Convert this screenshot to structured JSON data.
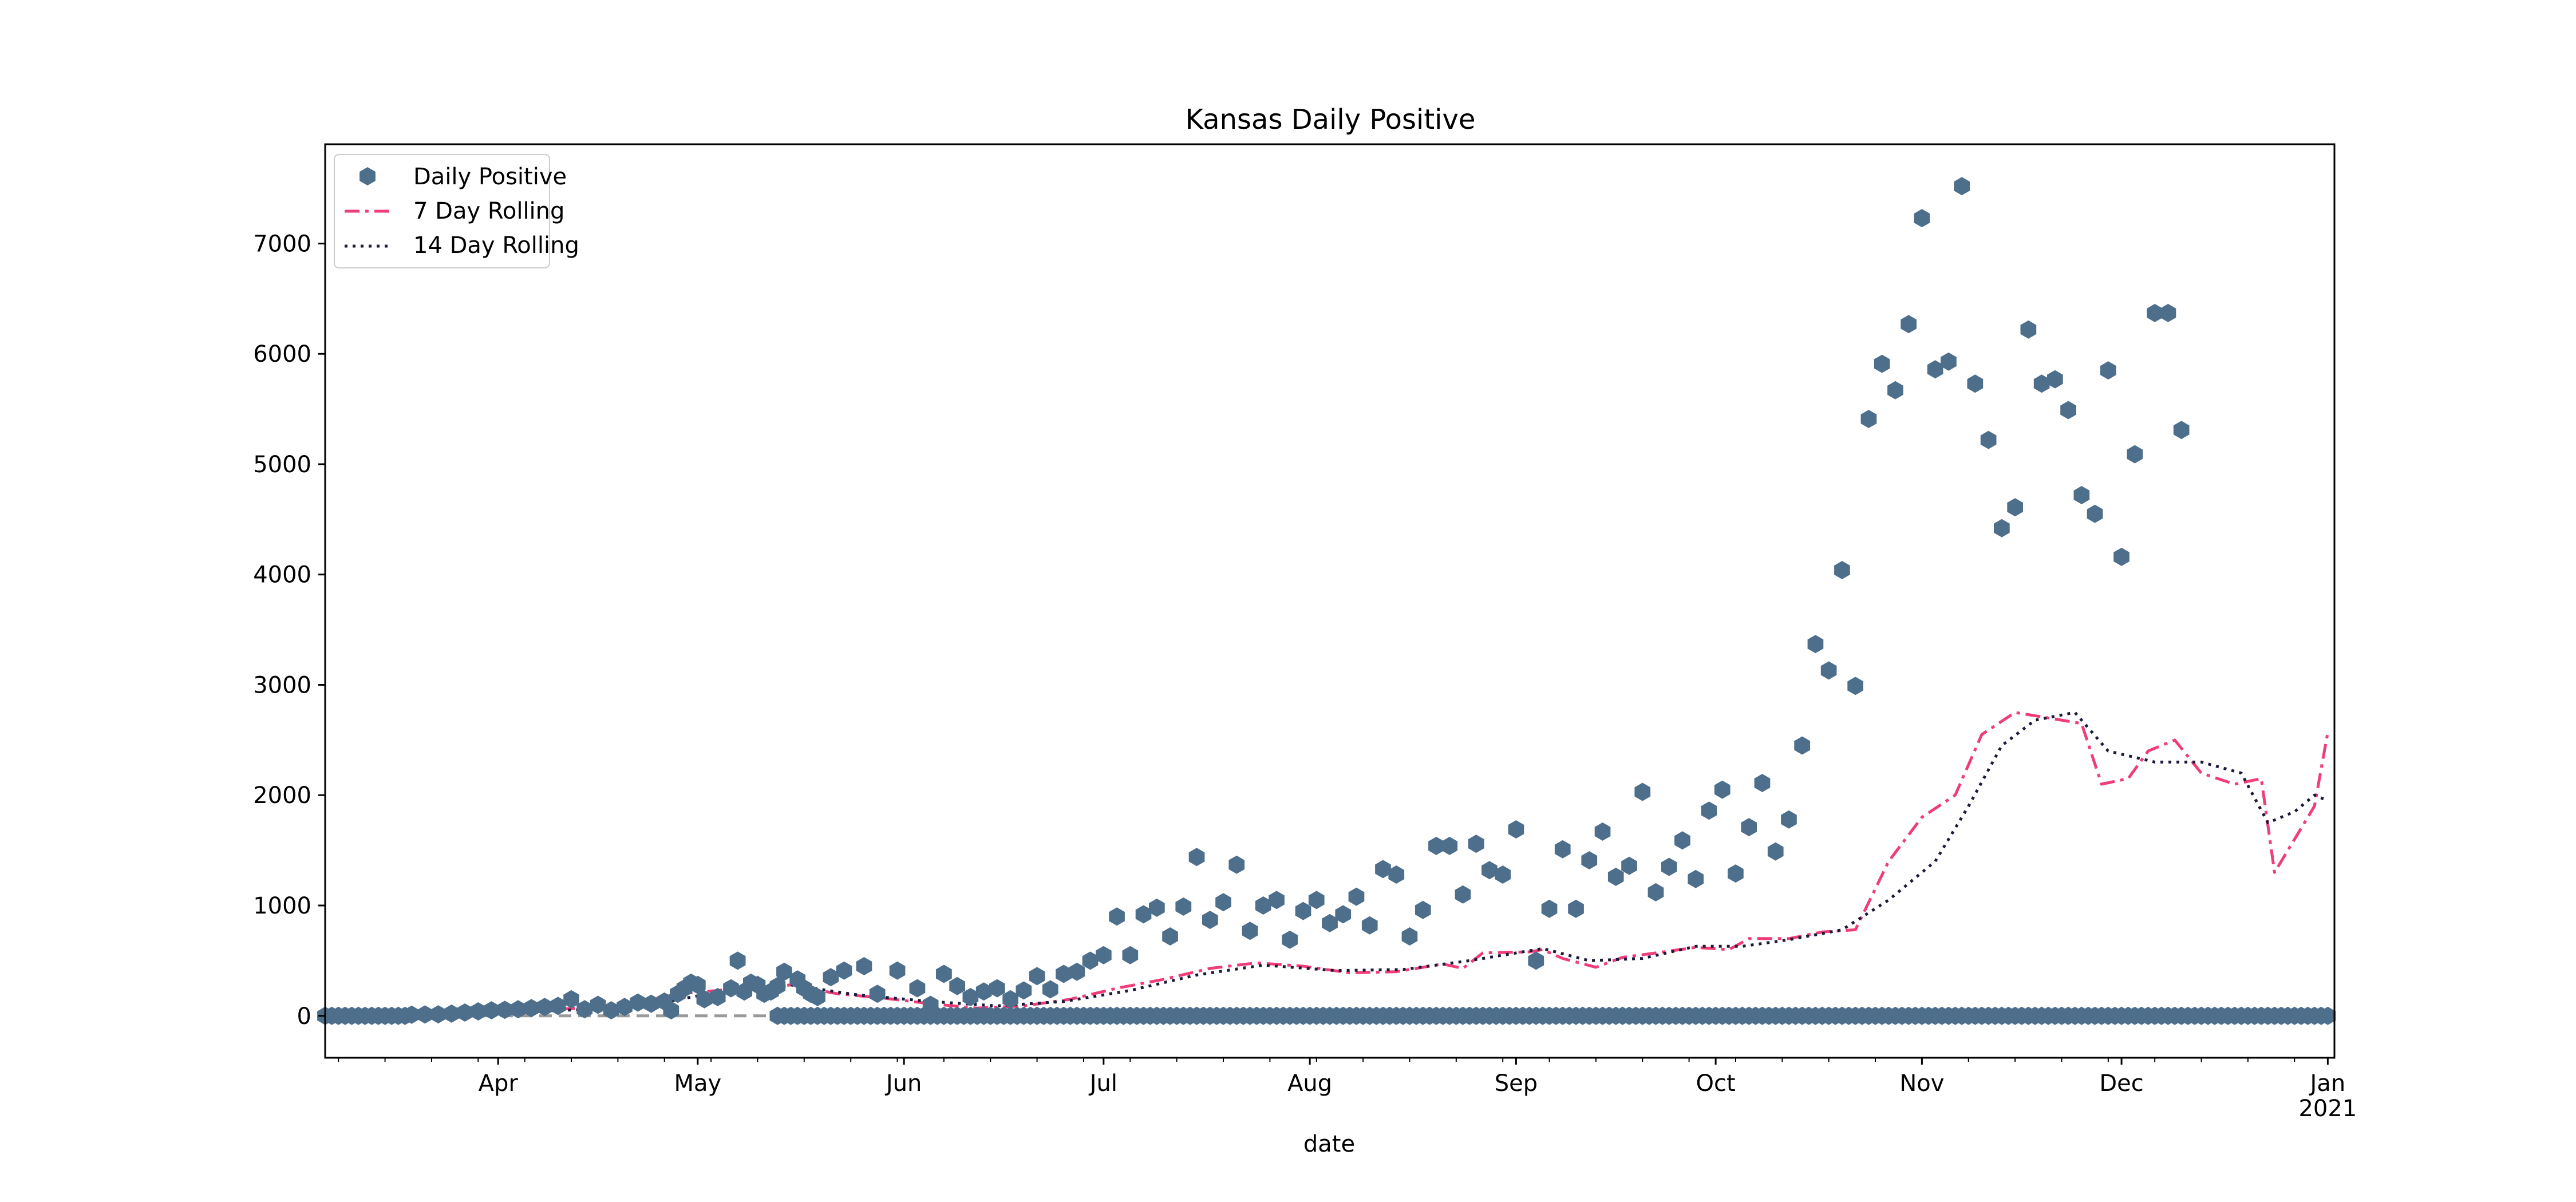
{
  "chart_data": {
    "type": "line",
    "title": "Kansas Daily Positive",
    "xlabel": "date",
    "ylabel": "",
    "ylim": [
      -380,
      7900
    ],
    "xlim": [
      "2020-03-06",
      "2021-01-02"
    ],
    "y_ticks": [
      0,
      1000,
      2000,
      3000,
      4000,
      5000,
      6000,
      7000
    ],
    "x_ticks": [
      {
        "date": "2020-04-01",
        "label": "Apr"
      },
      {
        "date": "2020-05-01",
        "label": "May"
      },
      {
        "date": "2020-06-01",
        "label": "Jun"
      },
      {
        "date": "2020-07-01",
        "label": "Jul"
      },
      {
        "date": "2020-08-01",
        "label": "Aug"
      },
      {
        "date": "2020-09-01",
        "label": "Sep"
      },
      {
        "date": "2020-10-01",
        "label": "Oct"
      },
      {
        "date": "2020-11-01",
        "label": "Nov"
      },
      {
        "date": "2020-12-01",
        "label": "Dec"
      },
      {
        "date": "2021-01-01",
        "label": "Jan",
        "sublabel": "2021"
      }
    ],
    "grid": false,
    "legend_position": "top-left",
    "colors": {
      "daily": "#4e6f8c",
      "rolling7": "#f03c78",
      "rolling14": "#1a1a3a",
      "zero_line": "#999999"
    },
    "series": [
      {
        "name": "Daily Positive",
        "style": "hexagon-markers",
        "points": [
          [
            "2020-03-19",
            10
          ],
          [
            "2020-03-21",
            12
          ],
          [
            "2020-03-23",
            14
          ],
          [
            "2020-03-25",
            20
          ],
          [
            "2020-03-27",
            30
          ],
          [
            "2020-03-29",
            40
          ],
          [
            "2020-03-31",
            50
          ],
          [
            "2020-04-02",
            55
          ],
          [
            "2020-04-04",
            60
          ],
          [
            "2020-04-06",
            70
          ],
          [
            "2020-04-08",
            80
          ],
          [
            "2020-04-10",
            90
          ],
          [
            "2020-04-12",
            150
          ],
          [
            "2020-04-14",
            60
          ],
          [
            "2020-04-16",
            100
          ],
          [
            "2020-04-18",
            50
          ],
          [
            "2020-04-20",
            80
          ],
          [
            "2020-04-22",
            120
          ],
          [
            "2020-04-24",
            110
          ],
          [
            "2020-04-26",
            130
          ],
          [
            "2020-04-27",
            50
          ],
          [
            "2020-04-28",
            200
          ],
          [
            "2020-04-29",
            250
          ],
          [
            "2020-04-30",
            300
          ],
          [
            "2020-05-01",
            280
          ],
          [
            "2020-05-02",
            150
          ],
          [
            "2020-05-04",
            170
          ],
          [
            "2020-05-06",
            250
          ],
          [
            "2020-05-07",
            500
          ],
          [
            "2020-05-08",
            220
          ],
          [
            "2020-05-09",
            300
          ],
          [
            "2020-05-10",
            280
          ],
          [
            "2020-05-11",
            200
          ],
          [
            "2020-05-12",
            220
          ],
          [
            "2020-05-13",
            270
          ],
          [
            "2020-05-14",
            400
          ],
          [
            "2020-05-16",
            330
          ],
          [
            "2020-05-17",
            250
          ],
          [
            "2020-05-18",
            200
          ],
          [
            "2020-05-19",
            170
          ],
          [
            "2020-05-21",
            350
          ],
          [
            "2020-05-23",
            410
          ],
          [
            "2020-05-26",
            450
          ],
          [
            "2020-05-28",
            200
          ],
          [
            "2020-05-31",
            410
          ],
          [
            "2020-06-03",
            250
          ],
          [
            "2020-06-05",
            100
          ],
          [
            "2020-06-07",
            380
          ],
          [
            "2020-06-09",
            270
          ],
          [
            "2020-06-11",
            170
          ],
          [
            "2020-06-13",
            220
          ],
          [
            "2020-06-15",
            250
          ],
          [
            "2020-06-17",
            150
          ],
          [
            "2020-06-19",
            230
          ],
          [
            "2020-06-21",
            360
          ],
          [
            "2020-06-23",
            240
          ],
          [
            "2020-06-25",
            380
          ],
          [
            "2020-06-27",
            400
          ],
          [
            "2020-06-29",
            500
          ],
          [
            "2020-07-01",
            550
          ],
          [
            "2020-07-03",
            900
          ],
          [
            "2020-07-05",
            550
          ],
          [
            "2020-07-07",
            920
          ],
          [
            "2020-07-09",
            980
          ],
          [
            "2020-07-11",
            720
          ],
          [
            "2020-07-13",
            990
          ],
          [
            "2020-07-15",
            1440
          ],
          [
            "2020-07-17",
            870
          ],
          [
            "2020-07-19",
            1030
          ],
          [
            "2020-07-21",
            1370
          ],
          [
            "2020-07-23",
            770
          ],
          [
            "2020-07-25",
            1000
          ],
          [
            "2020-07-27",
            1050
          ],
          [
            "2020-07-29",
            690
          ],
          [
            "2020-07-31",
            950
          ],
          [
            "2020-08-02",
            1050
          ],
          [
            "2020-08-04",
            840
          ],
          [
            "2020-08-06",
            920
          ],
          [
            "2020-08-08",
            1080
          ],
          [
            "2020-08-10",
            820
          ],
          [
            "2020-08-12",
            1330
          ],
          [
            "2020-08-14",
            1280
          ],
          [
            "2020-08-16",
            720
          ],
          [
            "2020-08-18",
            960
          ],
          [
            "2020-08-20",
            1540
          ],
          [
            "2020-08-22",
            1540
          ],
          [
            "2020-08-24",
            1100
          ],
          [
            "2020-08-26",
            1560
          ],
          [
            "2020-08-28",
            1320
          ],
          [
            "2020-08-30",
            1280
          ],
          [
            "2020-09-01",
            1690
          ],
          [
            "2020-09-04",
            500
          ],
          [
            "2020-09-06",
            970
          ],
          [
            "2020-09-08",
            1510
          ],
          [
            "2020-09-10",
            970
          ],
          [
            "2020-09-12",
            1410
          ],
          [
            "2020-09-14",
            1670
          ],
          [
            "2020-09-16",
            1260
          ],
          [
            "2020-09-18",
            1360
          ],
          [
            "2020-09-20",
            2030
          ],
          [
            "2020-09-22",
            1120
          ],
          [
            "2020-09-24",
            1350
          ],
          [
            "2020-09-26",
            1590
          ],
          [
            "2020-09-28",
            1240
          ],
          [
            "2020-09-30",
            1860
          ],
          [
            "2020-10-02",
            2050
          ],
          [
            "2020-10-04",
            1290
          ],
          [
            "2020-10-06",
            1710
          ],
          [
            "2020-10-08",
            2110
          ],
          [
            "2020-10-10",
            1490
          ],
          [
            "2020-10-12",
            1780
          ],
          [
            "2020-10-14",
            2450
          ],
          [
            "2020-10-16",
            3370
          ],
          [
            "2020-10-18",
            3130
          ],
          [
            "2020-10-20",
            4040
          ],
          [
            "2020-10-22",
            2990
          ],
          [
            "2020-10-24",
            5410
          ],
          [
            "2020-10-26",
            5910
          ],
          [
            "2020-10-28",
            5670
          ],
          [
            "2020-10-30",
            6270
          ],
          [
            "2020-11-01",
            7230
          ],
          [
            "2020-11-03",
            5860
          ],
          [
            "2020-11-05",
            5930
          ],
          [
            "2020-11-07",
            7520
          ],
          [
            "2020-11-09",
            5730
          ],
          [
            "2020-11-11",
            5220
          ],
          [
            "2020-11-13",
            4420
          ],
          [
            "2020-11-15",
            4610
          ],
          [
            "2020-11-17",
            6220
          ],
          [
            "2020-11-19",
            5730
          ],
          [
            "2020-11-21",
            5770
          ],
          [
            "2020-11-23",
            5490
          ],
          [
            "2020-11-25",
            4720
          ],
          [
            "2020-11-27",
            4550
          ],
          [
            "2020-11-29",
            5850
          ],
          [
            "2020-12-01",
            4160
          ],
          [
            "2020-12-03",
            5090
          ],
          [
            "2020-12-06",
            6370
          ],
          [
            "2020-12-08",
            6370
          ],
          [
            "2020-12-10",
            5310
          ]
        ],
        "zero_runs": [
          [
            "2020-03-06",
            "2020-03-18"
          ],
          [
            "2020-05-13",
            "2021-01-01"
          ]
        ]
      },
      {
        "name": "7 Day Rolling",
        "style": "dash-dot",
        "points": [
          [
            "2020-03-10",
            0
          ],
          [
            "2020-03-20",
            5
          ],
          [
            "2020-03-31",
            30
          ],
          [
            "2020-04-10",
            60
          ],
          [
            "2020-04-20",
            90
          ],
          [
            "2020-04-28",
            200
          ],
          [
            "2020-05-08",
            250
          ],
          [
            "2020-05-15",
            280
          ],
          [
            "2020-05-22",
            200
          ],
          [
            "2020-05-29",
            160
          ],
          [
            "2020-06-05",
            110
          ],
          [
            "2020-06-12",
            70
          ],
          [
            "2020-06-19",
            90
          ],
          [
            "2020-06-26",
            150
          ],
          [
            "2020-07-03",
            250
          ],
          [
            "2020-07-10",
            330
          ],
          [
            "2020-07-17",
            430
          ],
          [
            "2020-07-24",
            480
          ],
          [
            "2020-07-31",
            450
          ],
          [
            "2020-08-07",
            390
          ],
          [
            "2020-08-14",
            400
          ],
          [
            "2020-08-21",
            470
          ],
          [
            "2020-08-24",
            430
          ],
          [
            "2020-08-27",
            570
          ],
          [
            "2020-09-03",
            580
          ],
          [
            "2020-09-05",
            600
          ],
          [
            "2020-09-08",
            520
          ],
          [
            "2020-09-13",
            440
          ],
          [
            "2020-09-17",
            530
          ],
          [
            "2020-09-22",
            570
          ],
          [
            "2020-09-28",
            620
          ],
          [
            "2020-10-03",
            600
          ],
          [
            "2020-10-06",
            700
          ],
          [
            "2020-10-12",
            700
          ],
          [
            "2020-10-17",
            760
          ],
          [
            "2020-10-22",
            780
          ],
          [
            "2020-10-27",
            1400
          ],
          [
            "2020-11-01",
            1800
          ],
          [
            "2020-11-06",
            2000
          ],
          [
            "2020-11-10",
            2550
          ],
          [
            "2020-11-15",
            2750
          ],
          [
            "2020-11-20",
            2700
          ],
          [
            "2020-11-25",
            2650
          ],
          [
            "2020-11-28",
            2100
          ],
          [
            "2020-12-02",
            2150
          ],
          [
            "2020-12-05",
            2400
          ],
          [
            "2020-12-09",
            2500
          ],
          [
            "2020-12-13",
            2200
          ],
          [
            "2020-12-18",
            2100
          ],
          [
            "2020-12-22",
            2150
          ],
          [
            "2020-12-24",
            1300
          ],
          [
            "2020-12-27",
            1600
          ],
          [
            "2020-12-30",
            1900
          ],
          [
            "2021-01-01",
            2570
          ]
        ]
      },
      {
        "name": "14 Day Rolling",
        "style": "dotted",
        "points": [
          [
            "2020-03-10",
            0
          ],
          [
            "2020-03-20",
            5
          ],
          [
            "2020-03-31",
            25
          ],
          [
            "2020-04-15",
            60
          ],
          [
            "2020-04-25",
            110
          ],
          [
            "2020-05-05",
            230
          ],
          [
            "2020-05-15",
            280
          ],
          [
            "2020-05-25",
            190
          ],
          [
            "2020-06-05",
            130
          ],
          [
            "2020-06-15",
            90
          ],
          [
            "2020-06-25",
            130
          ],
          [
            "2020-07-05",
            230
          ],
          [
            "2020-07-15",
            370
          ],
          [
            "2020-07-25",
            460
          ],
          [
            "2020-08-05",
            410
          ],
          [
            "2020-08-15",
            420
          ],
          [
            "2020-08-25",
            500
          ],
          [
            "2020-09-05",
            610
          ],
          [
            "2020-09-12",
            500
          ],
          [
            "2020-09-20",
            520
          ],
          [
            "2020-09-28",
            630
          ],
          [
            "2020-10-05",
            630
          ],
          [
            "2020-10-12",
            690
          ],
          [
            "2020-10-20",
            780
          ],
          [
            "2020-10-27",
            1050
          ],
          [
            "2020-11-03",
            1400
          ],
          [
            "2020-11-08",
            1900
          ],
          [
            "2020-11-13",
            2450
          ],
          [
            "2020-11-18",
            2680
          ],
          [
            "2020-11-24",
            2750
          ],
          [
            "2020-11-29",
            2400
          ],
          [
            "2020-12-06",
            2300
          ],
          [
            "2020-12-13",
            2300
          ],
          [
            "2020-12-19",
            2200
          ],
          [
            "2020-12-23",
            1750
          ],
          [
            "2020-12-27",
            1850
          ],
          [
            "2020-12-30",
            2000
          ],
          [
            "2021-01-01",
            1950
          ]
        ]
      }
    ]
  }
}
